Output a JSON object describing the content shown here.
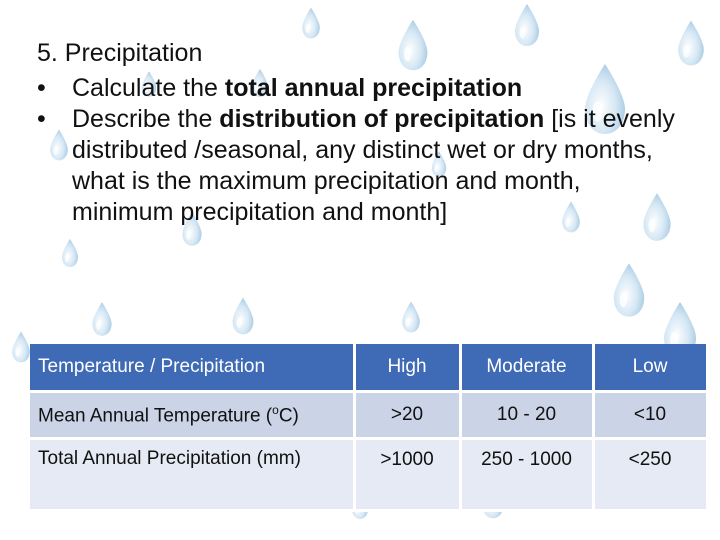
{
  "slide": {
    "heading": "5. Precipitation",
    "bullets": [
      {
        "marker": "•",
        "before": "Calculate the ",
        "bold": "total annual precipitation",
        "after": ""
      },
      {
        "marker": "•",
        "before": "Describe the ",
        "bold": "distribution of precipitation",
        "after": " [is it evenly distributed /seasonal, any distinct wet or dry months, what is the maximum precipitation and month, minimum precipitation and month]"
      }
    ]
  },
  "table": {
    "headers": [
      "Temperature / Precipitation",
      "High",
      "Moderate",
      "Low"
    ],
    "rows": [
      {
        "label_before": "Mean Annual Temperature (",
        "label_sup": "o",
        "label_after": "C)",
        "cells": [
          ">20",
          "10 - 20",
          "<10"
        ]
      },
      {
        "label": "Total Annual Precipitation (mm)",
        "cells": [
          ">1000",
          "250 - 1000",
          "<250"
        ]
      }
    ]
  },
  "colors": {
    "header_bg": "#3f6bb6",
    "row1_bg": "#cbd3e7",
    "row2_bg": "#e6eaf4",
    "drop_color": "#a9cde6"
  },
  "background_icon": "water-drop-icon"
}
